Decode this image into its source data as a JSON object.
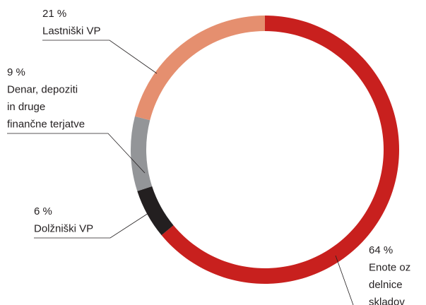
{
  "chart_data": {
    "type": "donut",
    "categories": [
      [
        "Enote oz",
        "delnice",
        "skladov"
      ],
      [
        "Dolžniški VP"
      ],
      [
        "Denar, depoziti",
        "in druge",
        "finančne terjatve"
      ],
      [
        "Lastniški VP"
      ]
    ],
    "values": [
      64,
      6,
      9,
      21
    ],
    "value_labels": [
      "64 %",
      "6 %",
      "9 %",
      "21 %"
    ],
    "colors": [
      "#c8201e",
      "#231f20",
      "#939598",
      "#e58f6f"
    ]
  }
}
